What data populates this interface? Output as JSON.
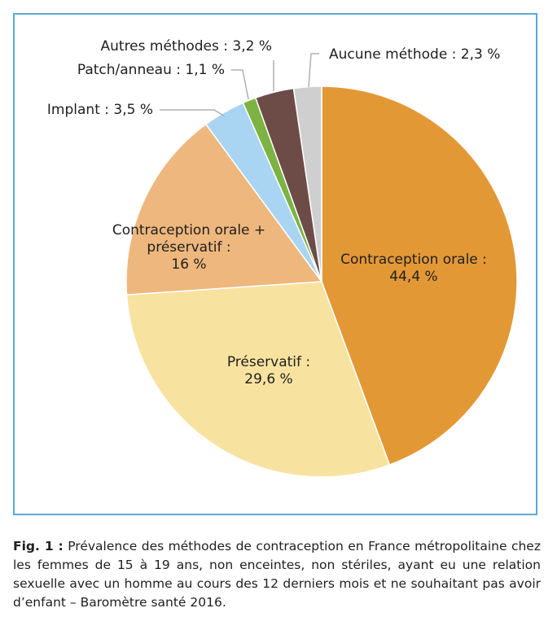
{
  "chart_data": {
    "type": "pie",
    "slices": [
      {
        "label_lines": [
          "Contraception orale :",
          "44,4 %"
        ],
        "value": 44.4,
        "color": "#E39836"
      },
      {
        "label_lines": [
          "Préservatif :",
          "29,6 %"
        ],
        "value": 29.6,
        "color": "#F8E2A0"
      },
      {
        "label_lines": [
          "Contraception orale +",
          "préservatif :",
          "16 %"
        ],
        "value": 16.0,
        "color": "#EEB77D"
      },
      {
        "label_lines": [
          "Implant : 3,5 %"
        ],
        "value": 3.5,
        "color": "#A9D5F3"
      },
      {
        "label_lines": [
          "Patch/anneau : 1,1 %"
        ],
        "value": 1.1,
        "color": "#7CB342"
      },
      {
        "label_lines": [
          "Autres méthodes : 3,2 %"
        ],
        "value": 3.2,
        "color": "#6D4C48"
      },
      {
        "label_lines": [
          "Aucune méthode : 2,3 %"
        ],
        "value": 2.3,
        "color": "#CFCFCF"
      }
    ]
  },
  "caption": {
    "fig_label": "Fig. 1 :",
    "text": " Prévalence des méthodes de contraception en France métropolitaine chez les femmes de 15 à 19 ans, non enceintes, non stériles, ayant eu une relation sexuelle avec un homme au cours des 12 derniers mois et ne souhaitant pas avoir d’enfant – Baromètre santé 2016."
  },
  "colors": {
    "frame_border": "#5aa9d9",
    "leader_line": "#b0b0b0",
    "slice_border": "#ffffff"
  }
}
